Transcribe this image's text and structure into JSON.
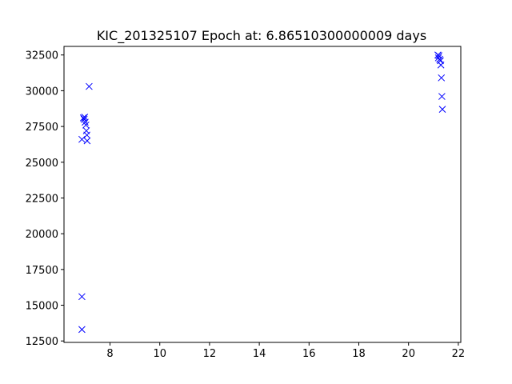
{
  "chart_data": {
    "type": "scatter",
    "title": "KIC_201325107 Epoch at: 6.86510300000009 days",
    "xlabel": "",
    "ylabel": "",
    "xlim": [
      6.15,
      22.1
    ],
    "ylim": [
      12400,
      33100
    ],
    "xticks": [
      8,
      10,
      12,
      14,
      16,
      18,
      20,
      22
    ],
    "yticks": [
      12500,
      15000,
      17500,
      20000,
      22500,
      25000,
      27500,
      30000,
      32500
    ],
    "marker": "x",
    "color": "#0000ff",
    "grid": false,
    "series": [
      {
        "points": [
          [
            6.87,
            26600
          ],
          [
            6.87,
            15600
          ],
          [
            6.87,
            13300
          ],
          [
            6.93,
            28100
          ],
          [
            6.96,
            28000
          ],
          [
            6.98,
            28150
          ],
          [
            7.0,
            27800
          ],
          [
            7.03,
            27600
          ],
          [
            7.05,
            27200
          ],
          [
            7.07,
            26900
          ],
          [
            7.08,
            26500
          ],
          [
            7.16,
            30300
          ],
          [
            21.18,
            32500
          ],
          [
            21.2,
            32300
          ],
          [
            21.22,
            32450
          ],
          [
            21.25,
            32200
          ],
          [
            21.28,
            32100
          ],
          [
            21.3,
            31800
          ],
          [
            21.32,
            30900
          ],
          [
            21.34,
            29600
          ],
          [
            21.36,
            28700
          ]
        ]
      }
    ]
  }
}
